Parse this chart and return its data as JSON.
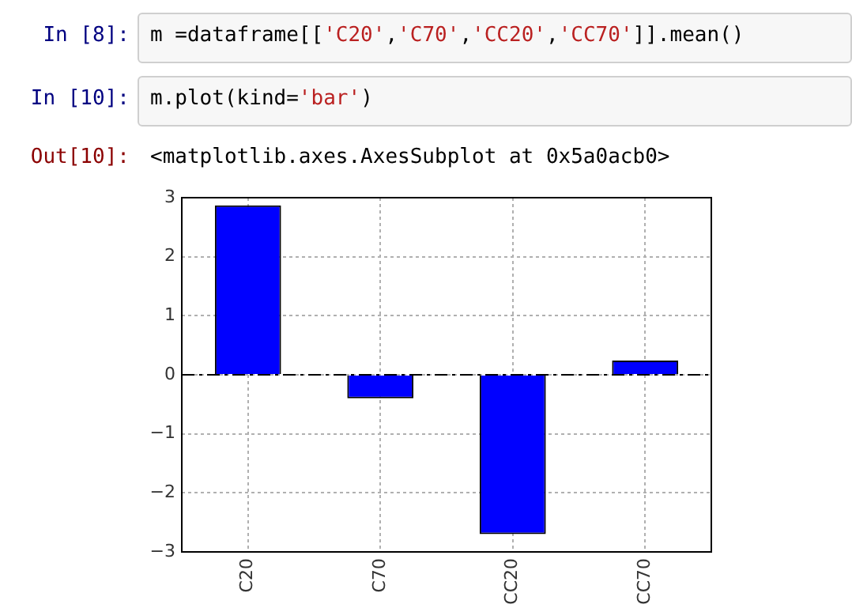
{
  "chart_data": {
    "type": "bar",
    "categories": [
      "C20",
      "C70",
      "CC20",
      "CC70"
    ],
    "values": [
      2.87,
      -0.4,
      -2.7,
      0.24
    ],
    "color": "#0000ff",
    "ylim": [
      -3,
      3
    ],
    "yticks": [
      -3,
      -2,
      -1,
      0,
      1,
      2,
      3
    ],
    "grid": true,
    "ref_lines": [
      {
        "axis": "y",
        "value": 0,
        "color": "#000000",
        "line_style": "dashed"
      }
    ],
    "annotations": [
      "In [8]:",
      "m =dataframe[['C20','C70','CC20','CC70']].mean()",
      "In [10]:",
      "m.plot(kind='bar')",
      "Out[10]:",
      "<matplotlib.axes.AxesSubplot at 0x5a0acb0>"
    ]
  }
}
